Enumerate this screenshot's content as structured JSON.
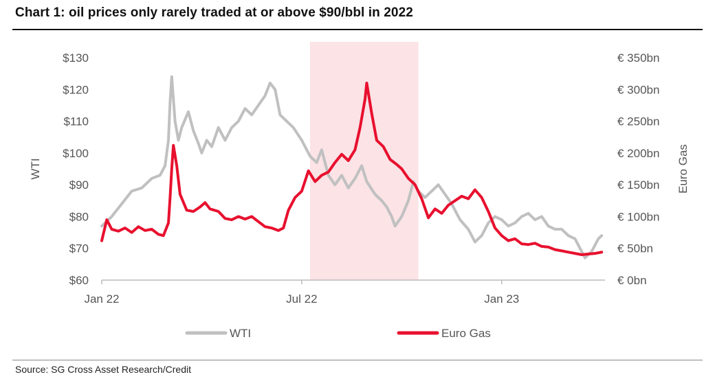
{
  "title": "Chart 1: oil prices only rarely traded at or above $90/bbl in 2022",
  "source": "Source: SG Cross Asset Research/Credit",
  "chart_data": {
    "type": "line",
    "x_range": [
      0,
      15.1
    ],
    "x_unit": "months since Jan 22",
    "x_ticks": [
      {
        "x": 0,
        "label": "Jan 22"
      },
      {
        "x": 6,
        "label": "Jul 22"
      },
      {
        "x": 12,
        "label": "Jan 23"
      }
    ],
    "y_left": {
      "label": "WTI",
      "range": [
        60,
        130
      ],
      "ticks": [
        130,
        120,
        110,
        100,
        90,
        80,
        70,
        60
      ],
      "tick_labels": [
        "$130",
        "$120",
        "$110",
        "$100",
        "$90",
        "$80",
        "$70",
        "$60"
      ]
    },
    "y_right": {
      "label": "Euro Gas",
      "range": [
        0,
        350
      ],
      "ticks": [
        350,
        300,
        250,
        200,
        150,
        100,
        50,
        0
      ],
      "tick_labels": [
        "€ 350bn",
        "€ 300bn",
        "€ 250bn",
        "€ 200bn",
        "€ 150bn",
        "€ 100bn",
        "€ 50bn",
        "€ 0bn"
      ]
    },
    "shaded_region": {
      "x_start": 6.25,
      "x_end": 9.5,
      "color": "#fbe3e6"
    },
    "series": [
      {
        "name": "WTI",
        "axis": "left",
        "color": "#c0c0c0",
        "points": [
          [
            0,
            77
          ],
          [
            0.3,
            80
          ],
          [
            0.6,
            84
          ],
          [
            0.9,
            88
          ],
          [
            1.2,
            89
          ],
          [
            1.5,
            92
          ],
          [
            1.75,
            93
          ],
          [
            1.9,
            96
          ],
          [
            2.0,
            104
          ],
          [
            2.05,
            116
          ],
          [
            2.1,
            124
          ],
          [
            2.2,
            110
          ],
          [
            2.3,
            104
          ],
          [
            2.4,
            108
          ],
          [
            2.6,
            113
          ],
          [
            2.75,
            107
          ],
          [
            2.9,
            103
          ],
          [
            3.0,
            100
          ],
          [
            3.15,
            104
          ],
          [
            3.3,
            102
          ],
          [
            3.5,
            108
          ],
          [
            3.7,
            104
          ],
          [
            3.9,
            108
          ],
          [
            4.1,
            110
          ],
          [
            4.3,
            114
          ],
          [
            4.5,
            112
          ],
          [
            4.7,
            115
          ],
          [
            4.9,
            118
          ],
          [
            5.05,
            122
          ],
          [
            5.2,
            120
          ],
          [
            5.35,
            112
          ],
          [
            5.55,
            110
          ],
          [
            5.75,
            108
          ],
          [
            6.0,
            104
          ],
          [
            6.25,
            99
          ],
          [
            6.45,
            97
          ],
          [
            6.6,
            101
          ],
          [
            6.8,
            93
          ],
          [
            7.0,
            90
          ],
          [
            7.2,
            93
          ],
          [
            7.4,
            89
          ],
          [
            7.6,
            92
          ],
          [
            7.8,
            96
          ],
          [
            7.95,
            91
          ],
          [
            8.2,
            87
          ],
          [
            8.4,
            85
          ],
          [
            8.55,
            83
          ],
          [
            8.7,
            80
          ],
          [
            8.8,
            77
          ],
          [
            9.0,
            80
          ],
          [
            9.2,
            85
          ],
          [
            9.35,
            91
          ],
          [
            9.5,
            88
          ],
          [
            9.7,
            86
          ],
          [
            9.9,
            88
          ],
          [
            10.1,
            90
          ],
          [
            10.3,
            87
          ],
          [
            10.5,
            84
          ],
          [
            10.75,
            79
          ],
          [
            11.0,
            76
          ],
          [
            11.2,
            72
          ],
          [
            11.4,
            74
          ],
          [
            11.6,
            78
          ],
          [
            11.8,
            80
          ],
          [
            12.0,
            79
          ],
          [
            12.2,
            77
          ],
          [
            12.4,
            78
          ],
          [
            12.6,
            80
          ],
          [
            12.8,
            81
          ],
          [
            13.0,
            79
          ],
          [
            13.2,
            80
          ],
          [
            13.4,
            77
          ],
          [
            13.6,
            76
          ],
          [
            13.8,
            76
          ],
          [
            14.0,
            74
          ],
          [
            14.2,
            73
          ],
          [
            14.35,
            70
          ],
          [
            14.5,
            67
          ],
          [
            14.7,
            69
          ],
          [
            14.9,
            73
          ],
          [
            15.0,
            74
          ]
        ]
      },
      {
        "name": "Euro Gas",
        "axis": "right",
        "color": "#e8102e",
        "points": [
          [
            0,
            62
          ],
          [
            0.15,
            95
          ],
          [
            0.3,
            80
          ],
          [
            0.5,
            77
          ],
          [
            0.7,
            82
          ],
          [
            0.9,
            75
          ],
          [
            1.1,
            84
          ],
          [
            1.3,
            78
          ],
          [
            1.5,
            80
          ],
          [
            1.7,
            72
          ],
          [
            1.85,
            70
          ],
          [
            2.0,
            90
          ],
          [
            2.05,
            130
          ],
          [
            2.1,
            175
          ],
          [
            2.15,
            212
          ],
          [
            2.25,
            180
          ],
          [
            2.35,
            135
          ],
          [
            2.55,
            110
          ],
          [
            2.75,
            108
          ],
          [
            2.95,
            115
          ],
          [
            3.1,
            122
          ],
          [
            3.25,
            112
          ],
          [
            3.5,
            108
          ],
          [
            3.7,
            97
          ],
          [
            3.9,
            95
          ],
          [
            4.1,
            100
          ],
          [
            4.3,
            96
          ],
          [
            4.5,
            100
          ],
          [
            4.7,
            92
          ],
          [
            4.9,
            84
          ],
          [
            5.1,
            82
          ],
          [
            5.3,
            78
          ],
          [
            5.45,
            82
          ],
          [
            5.6,
            110
          ],
          [
            5.8,
            130
          ],
          [
            6.0,
            140
          ],
          [
            6.2,
            172
          ],
          [
            6.4,
            155
          ],
          [
            6.6,
            165
          ],
          [
            6.8,
            170
          ],
          [
            7.0,
            185
          ],
          [
            7.2,
            198
          ],
          [
            7.4,
            188
          ],
          [
            7.6,
            205
          ],
          [
            7.75,
            240
          ],
          [
            7.9,
            285
          ],
          [
            7.95,
            310
          ],
          [
            8.1,
            262
          ],
          [
            8.25,
            220
          ],
          [
            8.45,
            210
          ],
          [
            8.65,
            190
          ],
          [
            8.85,
            182
          ],
          [
            9.0,
            175
          ],
          [
            9.2,
            160
          ],
          [
            9.4,
            150
          ],
          [
            9.6,
            128
          ],
          [
            9.8,
            98
          ],
          [
            10.0,
            112
          ],
          [
            10.2,
            105
          ],
          [
            10.4,
            118
          ],
          [
            10.6,
            125
          ],
          [
            10.8,
            132
          ],
          [
            11.0,
            128
          ],
          [
            11.2,
            142
          ],
          [
            11.4,
            130
          ],
          [
            11.6,
            108
          ],
          [
            11.8,
            82
          ],
          [
            12.0,
            70
          ],
          [
            12.2,
            62
          ],
          [
            12.4,
            65
          ],
          [
            12.6,
            57
          ],
          [
            12.8,
            56
          ],
          [
            13.0,
            58
          ],
          [
            13.2,
            53
          ],
          [
            13.4,
            52
          ],
          [
            13.6,
            48
          ],
          [
            13.8,
            46
          ],
          [
            14.0,
            44
          ],
          [
            14.2,
            42
          ],
          [
            14.4,
            40
          ],
          [
            14.6,
            41
          ],
          [
            14.8,
            42
          ],
          [
            15.0,
            44
          ]
        ]
      }
    ],
    "legend": {
      "position": "bottom-center",
      "entries": [
        "WTI",
        "Euro Gas"
      ]
    }
  }
}
